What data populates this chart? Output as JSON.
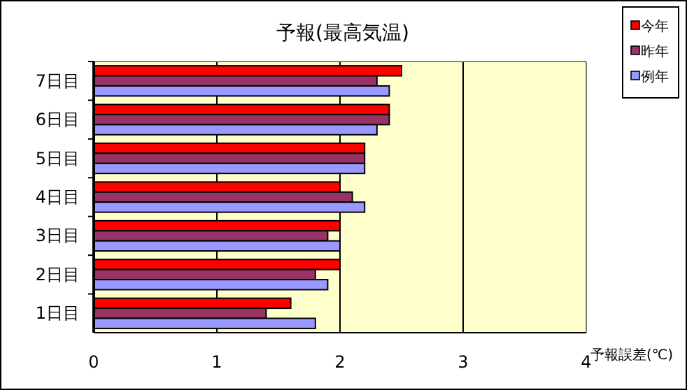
{
  "chart_data": {
    "type": "bar",
    "orientation": "horizontal",
    "title": "予報(最高気温)",
    "xlabel": "予報誤差(℃)",
    "categories": [
      "7日目",
      "6日目",
      "5日目",
      "4日目",
      "3日目",
      "2日目",
      "1日目"
    ],
    "series": [
      {
        "name": "今年",
        "color": "#ff0000",
        "values": [
          2.5,
          2.4,
          2.2,
          2.0,
          2.0,
          2.0,
          1.6
        ]
      },
      {
        "name": "昨年",
        "color": "#993366",
        "values": [
          2.3,
          2.4,
          2.2,
          2.1,
          1.9,
          1.8,
          1.4
        ]
      },
      {
        "name": "例年",
        "color": "#9999ff",
        "values": [
          2.4,
          2.3,
          2.2,
          2.2,
          2.0,
          1.9,
          1.8
        ]
      }
    ],
    "xlim": [
      0,
      4
    ],
    "xticks": [
      0,
      1,
      2,
      3,
      4
    ],
    "grid": "x",
    "legend": "top right"
  }
}
